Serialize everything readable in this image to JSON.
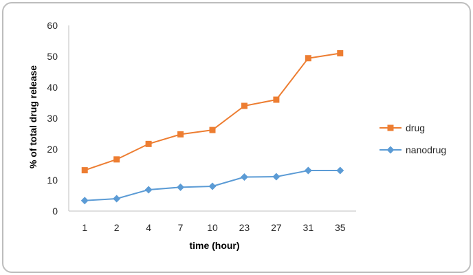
{
  "chart_data": {
    "type": "line",
    "categories": [
      "1",
      "2",
      "4",
      "7",
      "10",
      "23",
      "27",
      "31",
      "35"
    ],
    "xlabel": "time (hour)",
    "ylabel": "% of total drug release",
    "ylim": [
      0,
      60
    ],
    "yticks": [
      "0",
      "10",
      "20",
      "30",
      "40",
      "50",
      "60"
    ],
    "grid": false,
    "legend_position": "right",
    "series": [
      {
        "name": "drug",
        "color": "#ED7D31",
        "marker": "square",
        "values": [
          13.2,
          16.7,
          21.7,
          24.8,
          26.2,
          34.0,
          36.0,
          49.4,
          51.0
        ]
      },
      {
        "name": "nanodrug",
        "color": "#5B9BD5",
        "marker": "diamond",
        "values": [
          3.4,
          4.0,
          6.9,
          7.7,
          8.0,
          11.0,
          11.1,
          13.1,
          13.1
        ]
      }
    ]
  }
}
